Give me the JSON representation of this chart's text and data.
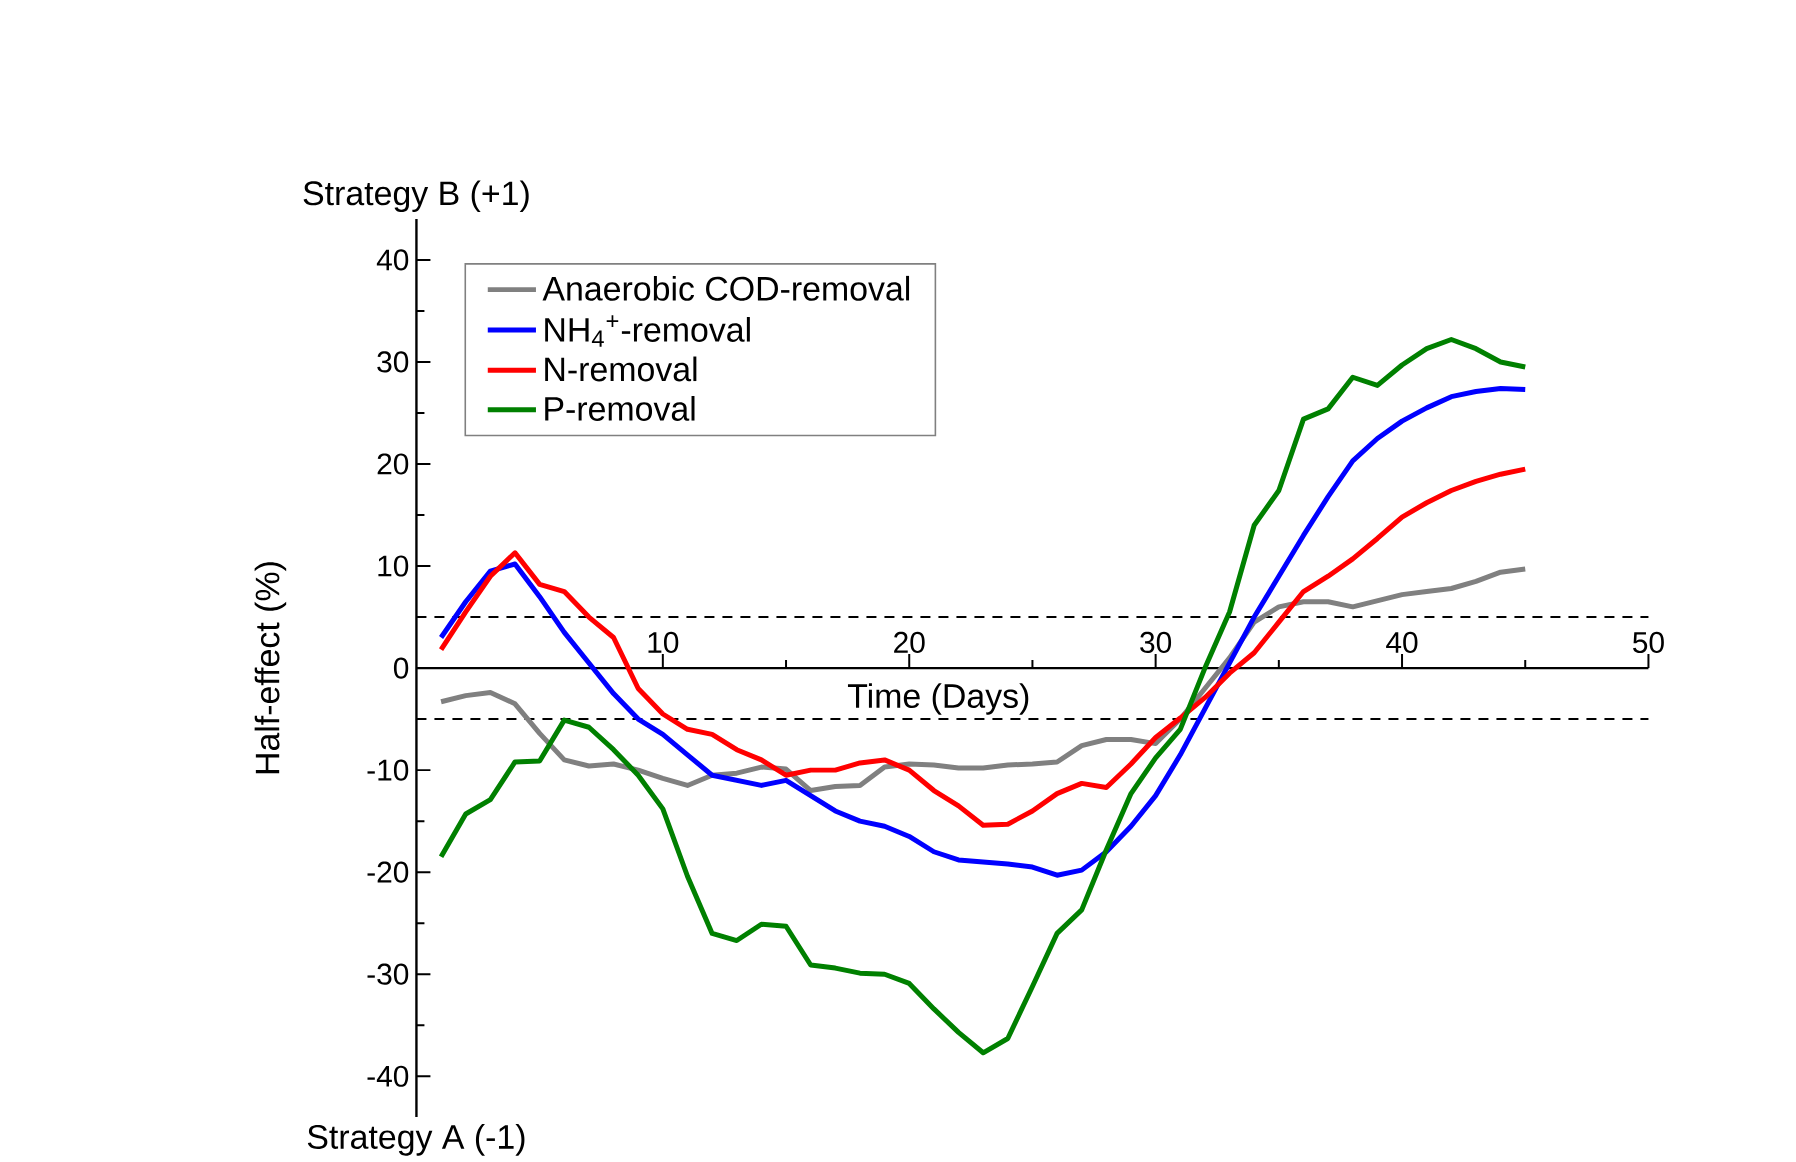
{
  "chart_data": {
    "type": "line",
    "xlabel": "Time (Days)",
    "ylabel": "Half-effect (%)",
    "annotations": [
      "Strategy B (+1)",
      "Strategy A (-1)"
    ],
    "x": [
      1,
      2,
      3,
      4,
      5,
      6,
      7,
      8,
      9,
      10,
      11,
      12,
      13,
      14,
      15,
      16,
      17,
      18,
      19,
      20,
      21,
      22,
      23,
      24,
      25,
      26,
      27,
      28,
      29,
      30,
      31,
      32,
      33,
      34,
      35,
      36,
      37,
      38,
      39,
      40,
      41,
      42,
      43,
      44,
      45
    ],
    "series": [
      {
        "name": "Anaerobic COD-removal",
        "color": "#808080",
        "values": [
          -3.3,
          -2.7,
          -2.4,
          -3.5,
          -6.4,
          -9,
          -9.6,
          -9.4,
          -10,
          -10.8,
          -11.5,
          -10.5,
          -10.3,
          -9.7,
          -9.9,
          -12,
          -11.6,
          -11.5,
          -9.7,
          -9.4,
          -9.5,
          -9.8,
          -9.8,
          -9.5,
          -9.4,
          -9.2,
          -7.6,
          -7,
          -7,
          -7.4,
          -5,
          -2,
          1,
          4.5,
          6,
          6.5,
          6.5,
          6,
          6.6,
          7.2,
          7.5,
          7.8,
          8.5,
          9.4,
          9.7
        ]
      },
      {
        "name": "NH$_{4}$$^{+}$-removal",
        "color": "#0000ff",
        "values": [
          3,
          6.5,
          9.5,
          10.2,
          7,
          3.5,
          0.5,
          -2.5,
          -5,
          -6.5,
          -8.5,
          -10.5,
          -11,
          -11.5,
          -11,
          -12.5,
          -14,
          -15,
          -15.5,
          -16.5,
          -18,
          -18.8,
          -19,
          -19.2,
          -19.5,
          -20.3,
          -19.8,
          -18,
          -15.5,
          -12.5,
          -8.5,
          -4,
          0.5,
          5,
          9,
          13,
          16.8,
          20.3,
          22.5,
          24.2,
          25.5,
          26.6,
          27.1,
          27.4,
          27.3
        ]
      },
      {
        "name": "N-removal",
        "color": "#ff0000",
        "values": [
          1.8,
          5.5,
          9,
          11.3,
          8.2,
          7.5,
          5,
          3,
          -2,
          -4.5,
          -6,
          -6.5,
          -8,
          -9,
          -10.5,
          -10,
          -10,
          -9.3,
          -9,
          -10,
          -12,
          -13.5,
          -15.4,
          -15.3,
          -14,
          -12.3,
          -11.3,
          -11.7,
          -9.4,
          -6.8,
          -4.9,
          -2.9,
          -0.5,
          1.5,
          4.5,
          7.5,
          9,
          10.7,
          12.7,
          14.8,
          16.2,
          17.4,
          18.3,
          19,
          19.5
        ]
      },
      {
        "name": "P-removal",
        "color": "#008000",
        "values": [
          -18.5,
          -14.3,
          -12.9,
          -9.2,
          -9.1,
          -5.1,
          -5.8,
          -8,
          -10.5,
          -13.8,
          -20.4,
          -26,
          -26.7,
          -25.1,
          -25.3,
          -29.1,
          -29.4,
          -29.9,
          -30,
          -30.9,
          -33.4,
          -35.7,
          -37.7,
          -36.3,
          -31.2,
          -26,
          -23.7,
          -17.8,
          -12.3,
          -8.8,
          -6,
          0,
          5.5,
          14,
          17.4,
          24.4,
          25.4,
          28.5,
          27.7,
          29.7,
          31.3,
          32.2,
          31.3,
          30,
          29.5
        ]
      }
    ],
    "xlim": [
      0,
      50
    ],
    "xticks": [
      10,
      20,
      30,
      40,
      50
    ],
    "ylim": [
      -44,
      44
    ],
    "yticks": [
      -40,
      -30,
      -20,
      -10,
      0,
      10,
      20,
      30,
      40
    ],
    "ref_lines": [
      {
        "axis": "y",
        "value": 5,
        "color": "#000000",
        "line_style": "dashed"
      },
      {
        "axis": "y",
        "value": -5,
        "color": "#000000",
        "line_style": "dashed"
      }
    ],
    "grid": false,
    "legend": "top left",
    "marker": "none",
    "line_style": "solid"
  }
}
